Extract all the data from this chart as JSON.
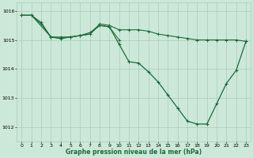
{
  "background_color": "#cce8d8",
  "grid_color": "#aaccbb",
  "line_color_dark": "#1a6b3a",
  "xlabel": "Graphe pression niveau de la mer (hPa)",
  "xlim": [
    -0.5,
    23.5
  ],
  "ylim": [
    1011.5,
    1016.3
  ],
  "yticks": [
    1012,
    1013,
    1014,
    1015,
    1016
  ],
  "xticks": [
    0,
    1,
    2,
    3,
    4,
    5,
    6,
    7,
    8,
    9,
    10,
    11,
    12,
    13,
    14,
    15,
    16,
    17,
    18,
    19,
    20,
    21,
    22,
    23
  ],
  "series1_x": [
    0,
    1,
    2,
    3,
    4,
    5,
    6,
    7,
    8,
    9,
    10,
    11,
    12,
    13,
    14,
    15,
    16,
    17,
    18,
    19,
    20,
    21,
    22,
    23
  ],
  "series1_y": [
    1015.85,
    1015.85,
    1015.6,
    1015.1,
    1015.1,
    1015.1,
    1015.15,
    1015.2,
    1015.55,
    1015.5,
    1015.35,
    1015.35,
    1015.35,
    1015.3,
    1015.2,
    1015.15,
    1015.1,
    1015.05,
    1015.0,
    1015.0,
    1015.0,
    1015.0,
    1015.0,
    1014.95
  ],
  "series2_x": [
    0,
    1,
    2,
    3,
    4,
    5,
    6,
    7,
    8,
    9,
    10,
    11,
    12,
    13,
    14,
    15,
    16,
    17,
    18,
    19,
    20,
    21,
    22,
    23
  ],
  "series2_y": [
    1015.85,
    1015.85,
    1015.55,
    1015.1,
    1015.05,
    1015.1,
    1015.15,
    1015.25,
    1015.5,
    1015.45,
    1014.85,
    1014.25,
    1014.2,
    1013.9,
    1013.55,
    1013.1,
    1012.65,
    1012.2,
    1012.1,
    1012.1,
    1012.8,
    1013.5,
    1013.95,
    1014.95
  ],
  "series3_x": [
    0,
    1,
    3,
    4,
    5,
    6,
    7,
    8,
    9,
    10
  ],
  "series3_y": [
    1015.85,
    1015.85,
    1015.1,
    1015.05,
    1015.1,
    1015.15,
    1015.2,
    1015.5,
    1015.45,
    1015.0
  ]
}
